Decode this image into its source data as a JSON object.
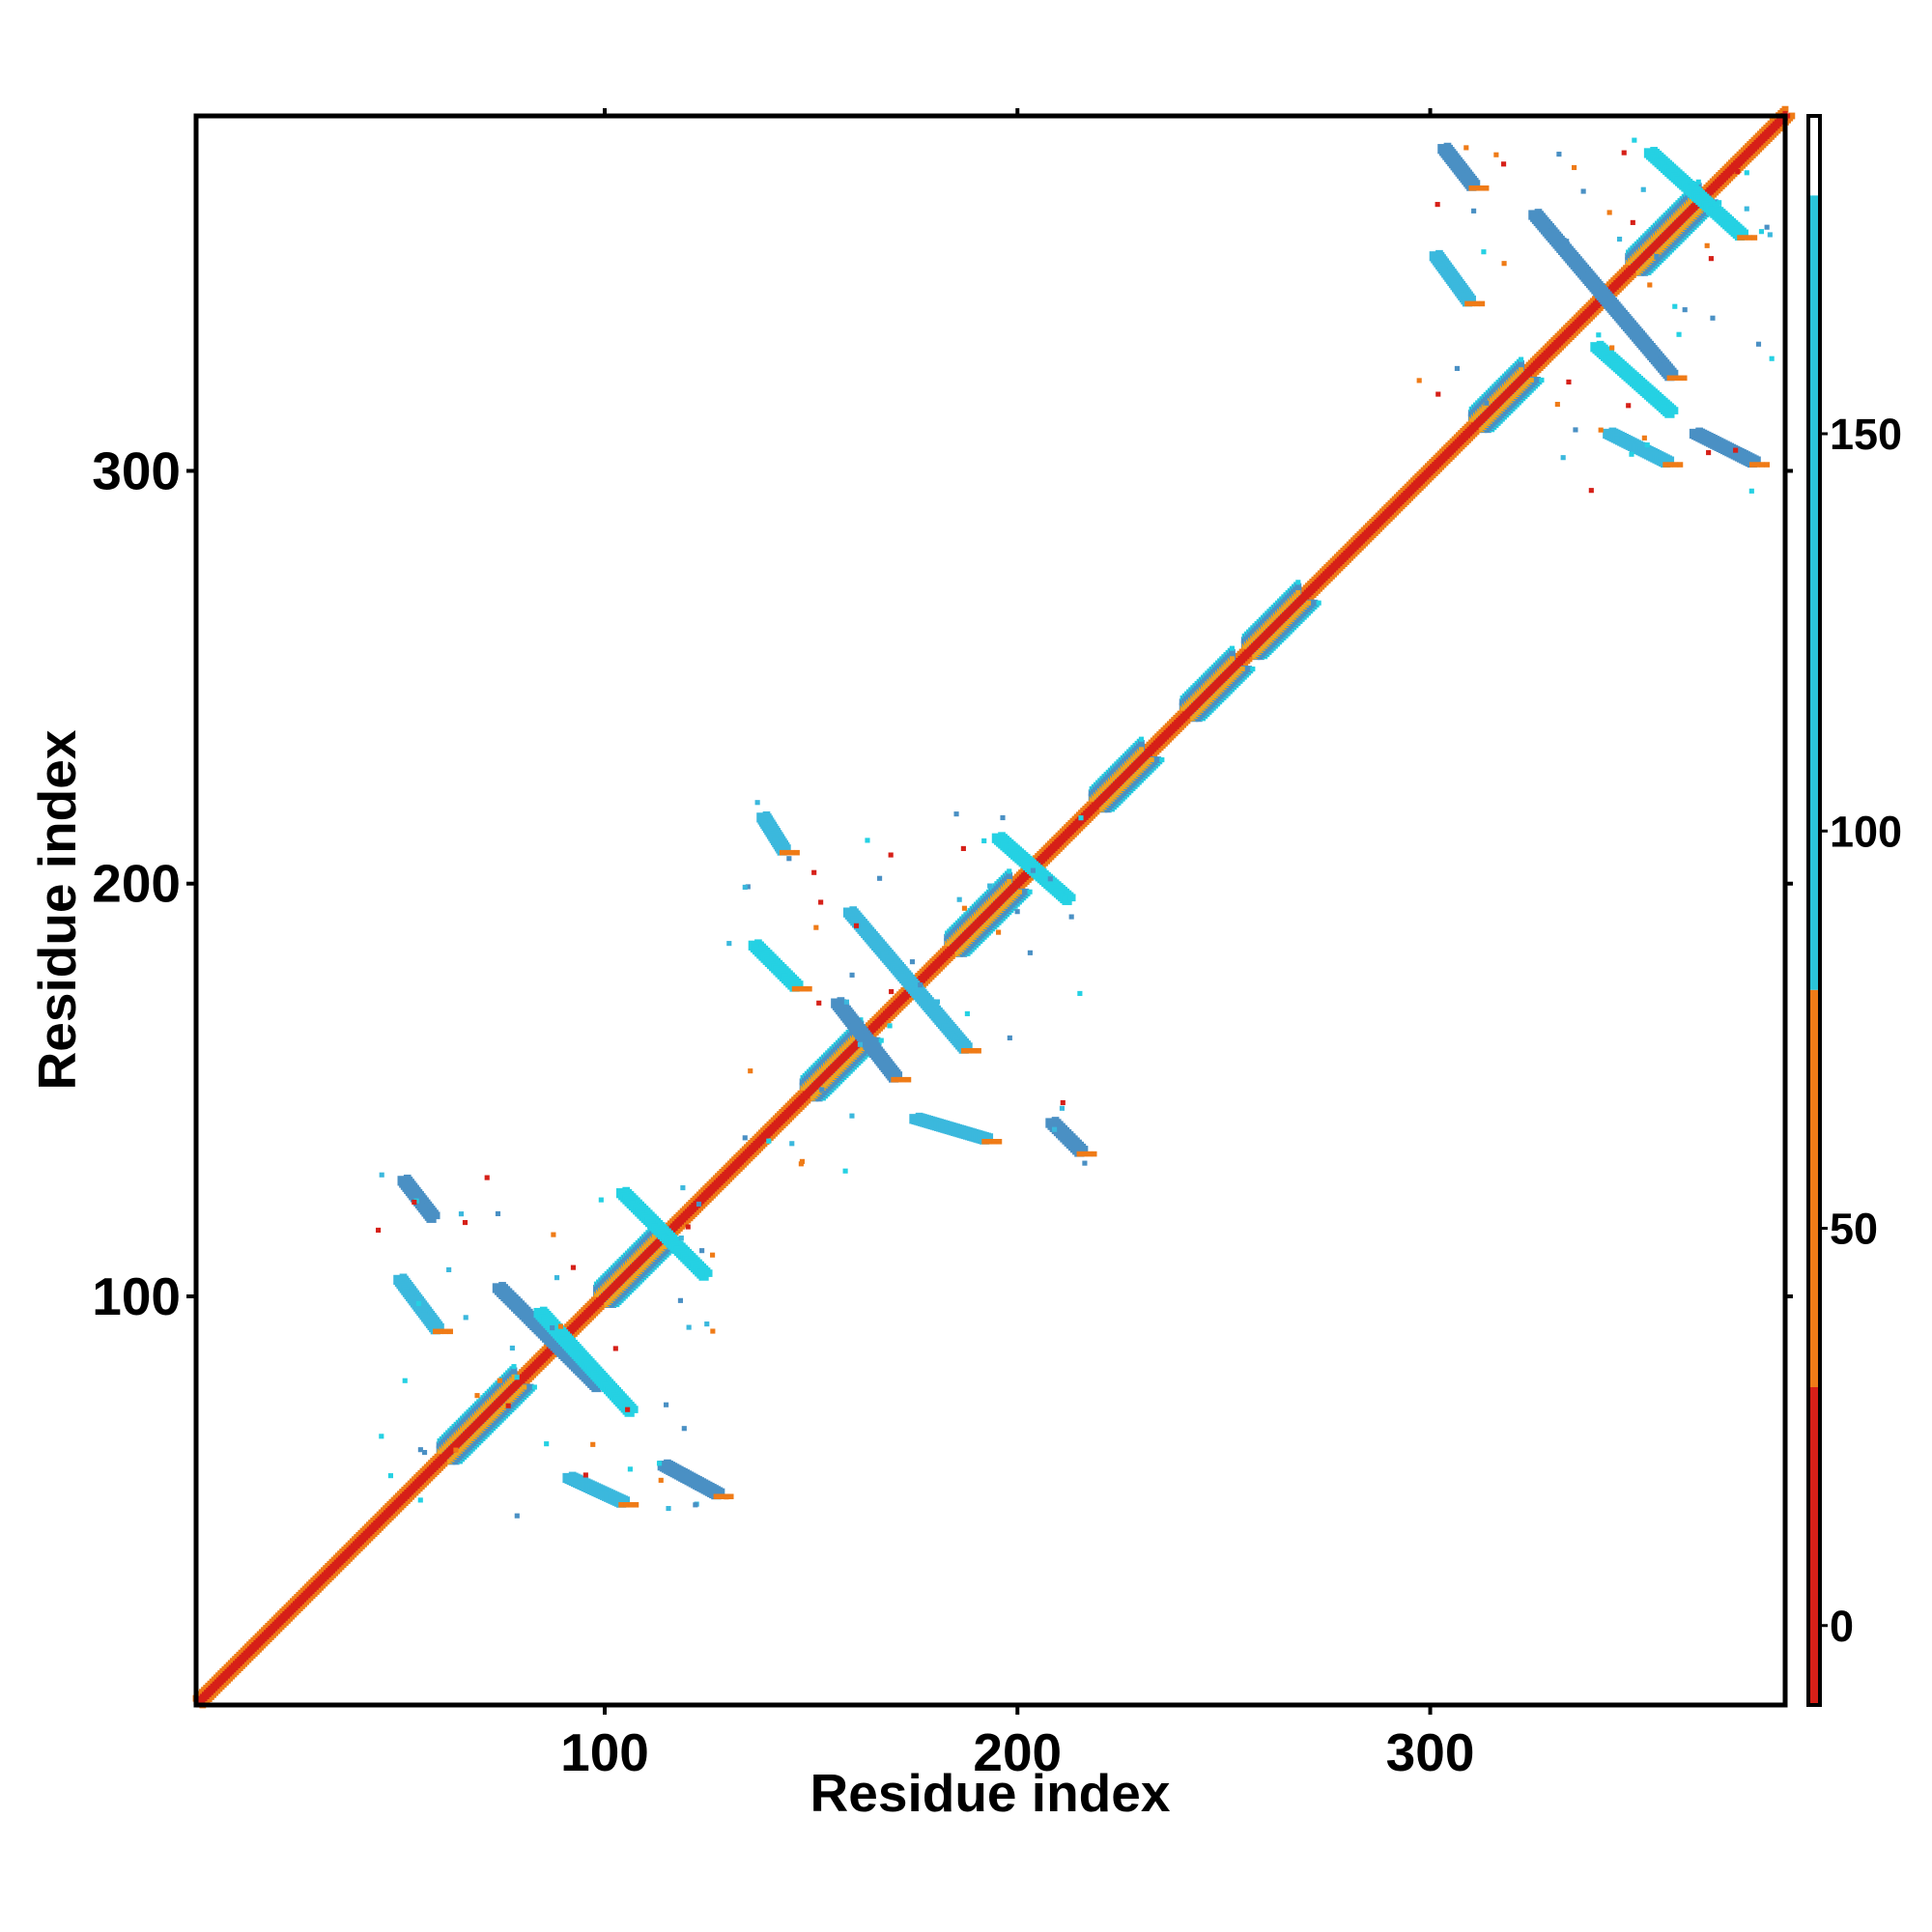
{
  "chart_data": {
    "type": "heatmap",
    "title": "",
    "xlabel": "Residue index",
    "ylabel": "Residue index",
    "xlim": [
      1,
      386
    ],
    "ylim": [
      1,
      386
    ],
    "x_ticks": [
      100,
      200,
      300
    ],
    "y_ticks": [
      100,
      200,
      300
    ],
    "colorbar": {
      "ticks": [
        0,
        50,
        100,
        150
      ],
      "range": [
        -10,
        190
      ],
      "bands": [
        {
          "from": -10,
          "to": 30,
          "color": "#d62018"
        },
        {
          "from": 30,
          "to": 80,
          "color": "#ef7b17"
        },
        {
          "from": 80,
          "to": 180,
          "color": "#2bc4d9"
        },
        {
          "from": 180,
          "to": 190,
          "color": "#ffffff"
        }
      ]
    },
    "palette": {
      "red": "#d62018",
      "orange": "#ef7b17",
      "amber": "#f2a21e",
      "cyan": "#25d1e3",
      "sky": "#3bb8dd",
      "steel": "#4a90c4",
      "pale": "#f3c27a"
    },
    "diagonal": {
      "from": 1,
      "to": 386
    },
    "helix_segments": [
      [
        60,
        78
      ],
      [
        98,
        112
      ],
      [
        148,
        162
      ],
      [
        183,
        198
      ],
      [
        218,
        230
      ],
      [
        240,
        252
      ],
      [
        255,
        268
      ],
      [
        310,
        322
      ],
      [
        348,
        365
      ]
    ],
    "off_diagonal_features": [
      {
        "x": [
          51,
          58
        ],
        "y": [
          128,
          119
        ],
        "color": "steel"
      },
      {
        "x": [
          50,
          59
        ],
        "y": [
          104,
          92
        ],
        "color": "sky"
      },
      {
        "x": [
          74,
          98
        ],
        "y": [
          102,
          78
        ],
        "color": "steel"
      },
      {
        "x": [
          84,
          106
        ],
        "y": [
          96,
          72
        ],
        "color": "cyan"
      },
      {
        "x": [
          91,
          104
        ],
        "y": [
          56,
          50
        ],
        "color": "sky"
      },
      {
        "x": [
          114,
          127
        ],
        "y": [
          59,
          52
        ],
        "color": "steel"
      },
      {
        "x": [
          104,
          124
        ],
        "y": [
          125,
          105
        ],
        "color": "cyan"
      },
      {
        "x": [
          138,
          143
        ],
        "y": [
          216,
          208
        ],
        "color": "sky"
      },
      {
        "x": [
          136,
          146
        ],
        "y": [
          185,
          175
        ],
        "color": "cyan"
      },
      {
        "x": [
          159,
          187
        ],
        "y": [
          193,
          160
        ],
        "color": "sky"
      },
      {
        "x": [
          156,
          170
        ],
        "y": [
          171,
          153
        ],
        "color": "steel"
      },
      {
        "x": [
          175,
          192
        ],
        "y": [
          143,
          138
        ],
        "color": "sky"
      },
      {
        "x": [
          208,
          215
        ],
        "y": [
          142,
          135
        ],
        "color": "steel"
      },
      {
        "x": [
          195,
          212
        ],
        "y": [
          211,
          196
        ],
        "color": "cyan"
      },
      {
        "x": [
          303,
          310
        ],
        "y": [
          378,
          369
        ],
        "color": "steel"
      },
      {
        "x": [
          301,
          309
        ],
        "y": [
          352,
          341
        ],
        "color": "sky"
      },
      {
        "x": [
          325,
          358
        ],
        "y": [
          362,
          323
        ],
        "color": "steel"
      },
      {
        "x": [
          340,
          358
        ],
        "y": [
          330,
          314
        ],
        "color": "cyan"
      },
      {
        "x": [
          343,
          357
        ],
        "y": [
          309,
          302
        ],
        "color": "sky"
      },
      {
        "x": [
          364,
          378
        ],
        "y": [
          309,
          302
        ],
        "color": "steel"
      },
      {
        "x": [
          353,
          375
        ],
        "y": [
          377,
          357
        ],
        "color": "cyan"
      }
    ],
    "scattered_contacts": {
      "seed": 7,
      "count": 160
    }
  }
}
